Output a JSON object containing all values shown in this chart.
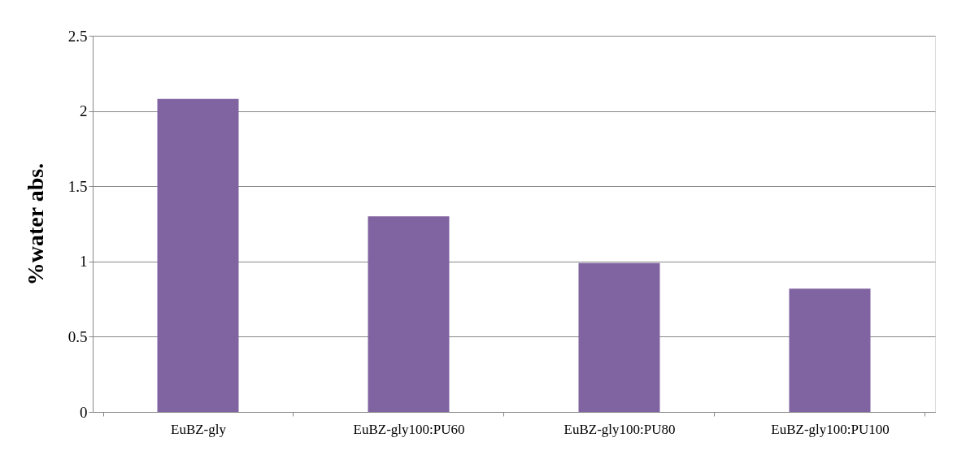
{
  "chart_data": {
    "type": "bar",
    "ylabel": "%water abs.",
    "categories": [
      "EuBZ-gly",
      "EuBZ-gly100:PU60",
      "EuBZ-gly100:PU80",
      "EuBZ-gly100:PU100"
    ],
    "values": [
      2.08,
      1.3,
      0.99,
      0.82
    ],
    "color": "#8064a2",
    "ylim": [
      0,
      2.5
    ],
    "yticks": [
      0,
      0.5,
      1,
      1.5,
      2,
      2.5
    ],
    "grid": "y"
  }
}
